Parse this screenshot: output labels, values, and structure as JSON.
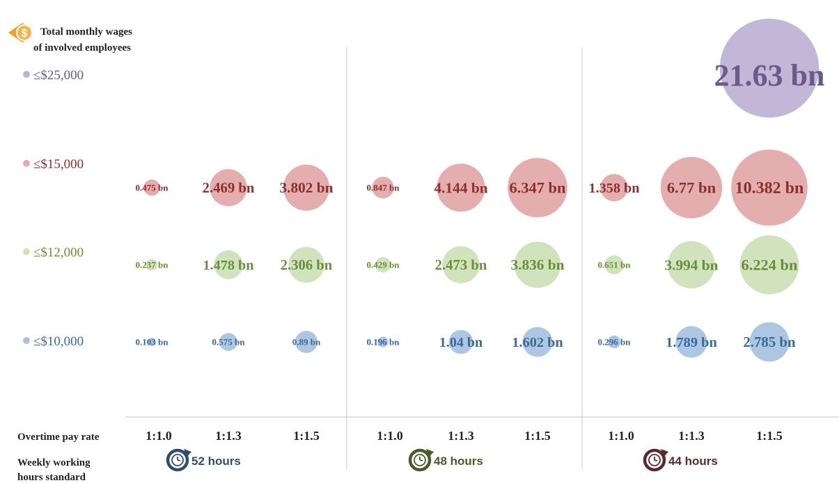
{
  "chart_data": {
    "type": "bubble",
    "title_lines": [
      "Total monthly wages",
      "of involved employees"
    ],
    "legend": [
      {
        "label": "≤$25,000",
        "color": "#bfb3d4"
      },
      {
        "label": "≤$15,000",
        "color": "#e3aaaa"
      },
      {
        "label": "≤$12,000",
        "color": "#cfe2b8"
      },
      {
        "label": "≤$10,000",
        "color": "#a9c3df"
      }
    ],
    "x_axis_label": "Overtime pay rate",
    "group_axis_label_lines": [
      "Weekly working",
      "hours standard"
    ],
    "groups": [
      {
        "label": "52 hours",
        "color": "#2e4e6b",
        "rates": [
          "1:1.0",
          "1:1.3",
          "1:1.5"
        ]
      },
      {
        "label": "48 hours",
        "color": "#4a5a2a",
        "rates": [
          "1:1.0",
          "1:1.3",
          "1:1.5"
        ]
      },
      {
        "label": "44 hours",
        "color": "#5a2a2e",
        "rates": [
          "1:1.0",
          "1:1.3",
          "1:1.5"
        ]
      }
    ],
    "series": [
      {
        "name": "≤$25,000",
        "fill": "#bfb3d4",
        "text_color": "#6a5a8a",
        "values": [
          null,
          null,
          null,
          null,
          null,
          null,
          null,
          null,
          21.63
        ],
        "labels": [
          "",
          "",
          "",
          "",
          "",
          "",
          "",
          "",
          "21.63 bn"
        ]
      },
      {
        "name": "≤$15,000",
        "fill": "#e3aaaa",
        "text_color": "#8c2f2f",
        "values": [
          0.475,
          2.469,
          3.802,
          0.847,
          4.144,
          6.347,
          1.358,
          6.77,
          10.382
        ],
        "labels": [
          "0.475 bn",
          "2.469 bn",
          "3.802 bn",
          "0.847 bn",
          "4.144 bn",
          "6.347 bn",
          "1.358 bn",
          "6.77 bn",
          "10.382 bn"
        ]
      },
      {
        "name": "≤$12,000",
        "fill": "#cfe2b8",
        "text_color": "#6b8e3a",
        "values": [
          0.237,
          1.478,
          2.306,
          0.429,
          2.473,
          3.836,
          0.651,
          3.994,
          6.224
        ],
        "labels": [
          "0.237 bn",
          "1.478 bn",
          "2.306 bn",
          "0.429 bn",
          "2.473 bn",
          "3.836 bn",
          "0.651 bn",
          "3.994 bn",
          "6.224 bn"
        ]
      },
      {
        "name": "≤$10,000",
        "fill": "#a9c3df",
        "text_color": "#3b6a99",
        "values": [
          0.103,
          0.575,
          0.89,
          0.196,
          1.04,
          1.602,
          0.296,
          1.789,
          2.785
        ],
        "labels": [
          "0.103 bn",
          "0.575 bn",
          "0.89 bn",
          "0.196 bn",
          "1.04 bn",
          "1.602 bn",
          "0.296 bn",
          "1.789 bn",
          "2.785 bn"
        ]
      }
    ],
    "icons": {
      "title": "dollar-eye-icon",
      "group": "clock-refresh-icon"
    }
  }
}
